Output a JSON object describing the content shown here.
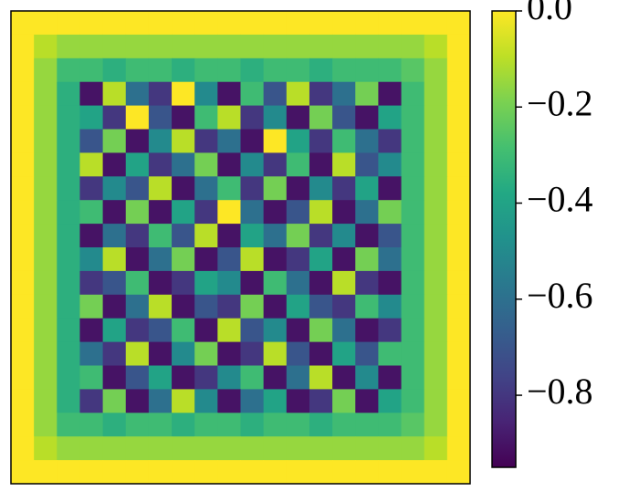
{
  "chart_data": {
    "type": "heatmap",
    "colormap": "viridis",
    "values": [
      [
        0,
        0,
        0,
        0,
        0,
        0,
        0,
        0,
        0,
        0,
        0,
        0,
        0,
        0,
        0,
        0,
        0,
        0,
        0,
        0
      ],
      [
        0,
        -0.1,
        -0.15,
        -0.15,
        -0.15,
        -0.15,
        -0.15,
        -0.15,
        -0.15,
        -0.15,
        -0.15,
        -0.15,
        -0.15,
        -0.15,
        -0.15,
        -0.15,
        -0.15,
        -0.15,
        -0.1,
        0
      ],
      [
        0,
        -0.15,
        -0.3,
        -0.3,
        -0.35,
        -0.3,
        -0.3,
        -0.35,
        -0.3,
        -0.3,
        -0.35,
        -0.3,
        -0.3,
        -0.35,
        -0.3,
        -0.3,
        -0.3,
        -0.25,
        -0.15,
        0
      ],
      [
        0,
        -0.15,
        -0.35,
        -0.9,
        -0.1,
        -0.6,
        -0.8,
        0,
        -0.5,
        -0.9,
        -0.3,
        -0.7,
        -0.1,
        -0.8,
        -0.6,
        -0.2,
        -0.9,
        -0.3,
        -0.15,
        0
      ],
      [
        0,
        -0.15,
        -0.35,
        -0.4,
        -0.8,
        0,
        -0.7,
        -0.9,
        -0.3,
        -0.1,
        -0.8,
        -0.5,
        -0.9,
        -0.2,
        -0.7,
        -0.9,
        -0.4,
        -0.3,
        -0.15,
        0
      ],
      [
        0,
        -0.15,
        -0.35,
        -0.7,
        -0.2,
        -0.9,
        -0.5,
        -0.1,
        -0.8,
        -0.6,
        -0.9,
        0,
        -0.4,
        -0.8,
        -0.3,
        -0.6,
        -0.8,
        -0.3,
        -0.15,
        0
      ],
      [
        0,
        -0.15,
        -0.35,
        -0.1,
        -0.9,
        -0.4,
        -0.8,
        -0.6,
        -0.2,
        -0.9,
        -0.5,
        -0.8,
        -0.3,
        -0.9,
        -0.1,
        -0.7,
        -0.5,
        -0.3,
        -0.15,
        0
      ],
      [
        0,
        -0.15,
        -0.35,
        -0.8,
        -0.5,
        -0.7,
        -0.1,
        -0.9,
        -0.6,
        -0.3,
        -0.8,
        -0.2,
        -0.9,
        -0.5,
        -0.8,
        -0.4,
        -0.9,
        -0.3,
        -0.15,
        0
      ],
      [
        0,
        -0.15,
        -0.35,
        -0.3,
        -0.9,
        -0.2,
        -0.9,
        -0.4,
        -0.8,
        0,
        -0.6,
        -0.9,
        -0.7,
        -0.1,
        -0.9,
        -0.6,
        -0.2,
        -0.3,
        -0.15,
        0
      ],
      [
        0,
        -0.15,
        -0.35,
        -0.9,
        -0.6,
        -0.8,
        -0.3,
        -0.7,
        -0.1,
        -0.9,
        -0.4,
        -0.6,
        -0.2,
        -0.8,
        -0.5,
        -0.9,
        -0.7,
        -0.3,
        -0.15,
        0
      ],
      [
        0,
        -0.15,
        -0.35,
        -0.5,
        -0.1,
        -0.9,
        -0.6,
        -0.2,
        -0.9,
        -0.7,
        -0.1,
        -0.9,
        -0.8,
        -0.4,
        -0.9,
        -0.2,
        -0.6,
        -0.3,
        -0.15,
        0
      ],
      [
        0,
        -0.15,
        -0.35,
        -0.8,
        -0.7,
        -0.3,
        -0.9,
        -0.8,
        -0.4,
        -0.5,
        -0.9,
        -0.3,
        -0.6,
        -0.9,
        -0.1,
        -0.8,
        -0.9,
        -0.3,
        -0.15,
        0
      ],
      [
        0,
        -0.15,
        -0.35,
        -0.2,
        -0.9,
        -0.6,
        -0.1,
        -0.9,
        -0.7,
        -0.8,
        -0.2,
        -0.9,
        -0.4,
        -0.7,
        -0.8,
        -0.3,
        -0.5,
        -0.3,
        -0.15,
        0
      ],
      [
        0,
        -0.15,
        -0.35,
        -0.9,
        -0.4,
        -0.8,
        -0.7,
        -0.3,
        -0.9,
        -0.1,
        -0.7,
        -0.5,
        -0.9,
        -0.2,
        -0.6,
        -0.9,
        -0.8,
        -0.3,
        -0.15,
        0
      ],
      [
        0,
        -0.15,
        -0.35,
        -0.6,
        -0.8,
        -0.1,
        -0.9,
        -0.5,
        -0.2,
        -0.9,
        -0.8,
        -0.1,
        -0.7,
        -0.9,
        -0.4,
        -0.7,
        -0.3,
        -0.3,
        -0.15,
        0
      ],
      [
        0,
        -0.15,
        -0.35,
        -0.3,
        -0.9,
        -0.7,
        -0.4,
        -0.9,
        -0.8,
        -0.5,
        -0.3,
        -0.9,
        -0.6,
        -0.1,
        -0.9,
        -0.5,
        -0.9,
        -0.3,
        -0.15,
        0
      ],
      [
        0,
        -0.15,
        -0.35,
        -0.8,
        -0.2,
        -0.9,
        -0.6,
        -0.1,
        -0.5,
        -0.9,
        -0.6,
        -0.4,
        -0.9,
        -0.8,
        -0.2,
        -0.9,
        -0.4,
        -0.3,
        -0.15,
        0
      ],
      [
        0,
        -0.15,
        -0.3,
        -0.3,
        -0.35,
        -0.3,
        -0.3,
        -0.35,
        -0.3,
        -0.3,
        -0.35,
        -0.3,
        -0.3,
        -0.35,
        -0.3,
        -0.3,
        -0.3,
        -0.25,
        -0.15,
        0
      ],
      [
        0,
        -0.1,
        -0.15,
        -0.15,
        -0.15,
        -0.15,
        -0.15,
        -0.15,
        -0.15,
        -0.15,
        -0.15,
        -0.15,
        -0.15,
        -0.15,
        -0.15,
        -0.15,
        -0.15,
        -0.15,
        -0.1,
        0
      ],
      [
        0,
        0,
        0,
        0,
        0,
        0,
        0,
        0,
        0,
        0,
        0,
        0,
        0,
        0,
        0,
        0,
        0,
        0,
        0,
        0
      ]
    ],
    "clim": [
      -0.95,
      0
    ],
    "cticks": [
      {
        "value": 0,
        "label": "0.0"
      },
      {
        "value": -0.2,
        "label": "−0.2"
      },
      {
        "value": -0.4,
        "label": "−0.4"
      },
      {
        "value": -0.6,
        "label": "−0.6"
      },
      {
        "value": -0.8,
        "label": "−0.8"
      }
    ]
  }
}
